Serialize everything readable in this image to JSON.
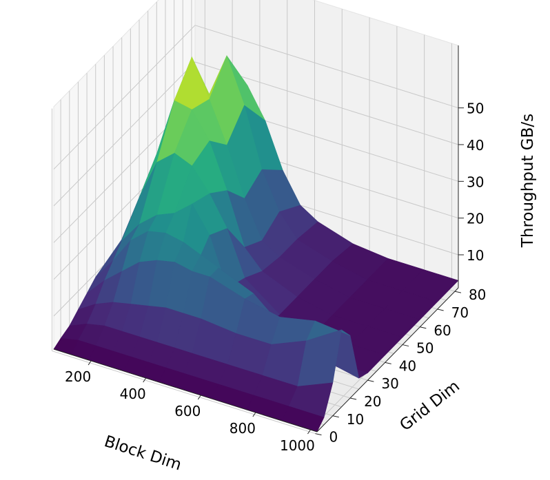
{
  "chart_data": {
    "type": "surface3d",
    "colormap": "viridis",
    "xlabel": "Block Dim",
    "ylabel": "Grid Dim",
    "zlabel": "Throughput GB/s",
    "x_ticks": [
      "200",
      "400",
      "600",
      "800",
      "1000"
    ],
    "y_ticks": [
      "0",
      "10",
      "20",
      "30",
      "40",
      "50",
      "60",
      "70",
      "80"
    ],
    "z_ticks": [
      "10",
      "20",
      "30",
      "40",
      "50"
    ],
    "xlim": [
      64,
      1024
    ],
    "ylim": [
      1,
      82
    ],
    "zlim": [
      1,
      55
    ],
    "x": [
      64,
      128,
      192,
      256,
      320,
      384,
      448,
      512,
      640,
      768,
      896,
      1024
    ],
    "y": [
      1,
      5,
      10,
      15,
      20,
      25,
      30,
      40,
      50,
      60,
      70,
      82
    ],
    "z": [
      [
        1,
        1,
        1,
        1,
        1,
        1,
        1,
        1,
        1,
        1,
        1,
        1
      ],
      [
        2,
        3,
        3,
        3,
        3,
        3,
        3,
        3,
        3,
        3,
        3,
        3
      ],
      [
        3,
        5,
        6,
        6,
        6,
        6,
        6,
        6,
        6,
        6,
        6,
        10
      ],
      [
        5,
        8,
        10,
        11,
        12,
        13,
        13,
        13,
        12,
        12,
        16,
        22
      ],
      [
        7,
        12,
        16,
        20,
        22,
        23,
        22,
        22,
        19,
        17,
        19,
        18
      ],
      [
        9,
        15,
        22,
        26,
        27,
        26,
        24,
        22,
        18,
        10,
        6,
        4
      ],
      [
        10,
        18,
        24,
        28,
        30,
        34,
        27,
        14,
        6,
        4,
        3,
        3
      ],
      [
        12,
        25,
        36,
        40,
        38,
        32,
        24,
        12,
        5,
        3,
        3,
        3
      ],
      [
        14,
        32,
        48,
        47,
        40,
        28,
        14,
        9,
        5,
        3,
        3,
        3
      ],
      [
        12,
        36,
        55,
        45,
        34,
        21,
        11,
        8,
        5,
        3,
        3,
        3
      ],
      [
        10,
        25,
        40,
        52,
        40,
        24,
        14,
        8,
        5,
        3,
        3,
        3
      ],
      [
        8,
        18,
        32,
        38,
        30,
        18,
        10,
        7,
        4,
        3,
        3,
        3
      ]
    ]
  }
}
